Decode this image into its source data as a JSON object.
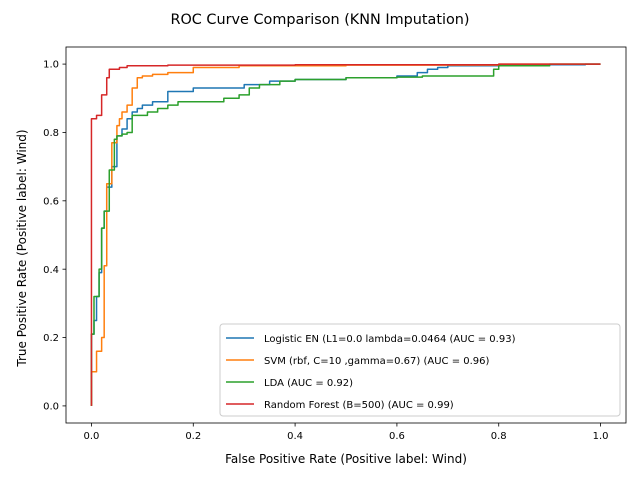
{
  "chart_data": {
    "type": "line",
    "title": "ROC Curve Comparison (KNN Imputation)",
    "xlabel": "False Positive Rate (Positive label: Wind)",
    "ylabel": "True Positive Rate (Positive label: Wind)",
    "xlim": [
      -0.05,
      1.05
    ],
    "ylim": [
      -0.05,
      1.05
    ],
    "xticks": [
      0.0,
      0.2,
      0.4,
      0.6,
      0.8,
      1.0
    ],
    "yticks": [
      0.0,
      0.2,
      0.4,
      0.6,
      0.8,
      1.0
    ],
    "xtick_labels": [
      "0.0",
      "0.2",
      "0.4",
      "0.6",
      "0.8",
      "1.0"
    ],
    "ytick_labels": [
      "0.0",
      "0.2",
      "0.4",
      "0.6",
      "0.8",
      "1.0"
    ],
    "grid": false,
    "legend_position": "lower right",
    "series": [
      {
        "name": "Logistic EN (L1=0.0 lambda=0.0464 (AUC = 0.93)",
        "color": "#1f77b4",
        "x": [
          0,
          0,
          0.005,
          0.005,
          0.01,
          0.01,
          0.015,
          0.015,
          0.02,
          0.02,
          0.025,
          0.025,
          0.03,
          0.03,
          0.04,
          0.04,
          0.05,
          0.05,
          0.06,
          0.06,
          0.07,
          0.07,
          0.08,
          0.08,
          0.09,
          0.09,
          0.1,
          0.1,
          0.12,
          0.12,
          0.15,
          0.15,
          0.2,
          0.2,
          0.3,
          0.3,
          0.35,
          0.35,
          0.4,
          0.4,
          0.5,
          0.5,
          0.6,
          0.6,
          0.64,
          0.64,
          0.66,
          0.66,
          0.68,
          0.68,
          0.7,
          0.7,
          0.8,
          0.8,
          0.97,
          0.97,
          1.0
        ],
        "y": [
          0,
          0.21,
          0.21,
          0.25,
          0.25,
          0.32,
          0.32,
          0.39,
          0.39,
          0.52,
          0.52,
          0.57,
          0.57,
          0.64,
          0.64,
          0.7,
          0.7,
          0.79,
          0.79,
          0.81,
          0.81,
          0.84,
          0.84,
          0.86,
          0.86,
          0.87,
          0.87,
          0.88,
          0.88,
          0.89,
          0.89,
          0.92,
          0.92,
          0.93,
          0.93,
          0.94,
          0.94,
          0.95,
          0.95,
          0.955,
          0.955,
          0.96,
          0.96,
          0.965,
          0.965,
          0.975,
          0.975,
          0.985,
          0.985,
          0.99,
          0.99,
          0.995,
          0.995,
          0.998,
          0.998,
          1.0,
          1.0
        ]
      },
      {
        "name": "SVM (rbf, C=10 ,gamma=0.67) (AUC = 0.96)",
        "color": "#ff7f0e",
        "x": [
          0,
          0,
          0.01,
          0.01,
          0.02,
          0.02,
          0.025,
          0.025,
          0.03,
          0.03,
          0.04,
          0.04,
          0.05,
          0.05,
          0.055,
          0.055,
          0.06,
          0.06,
          0.07,
          0.07,
          0.08,
          0.08,
          0.09,
          0.09,
          0.1,
          0.1,
          0.12,
          0.12,
          0.15,
          0.15,
          0.2,
          0.2,
          0.29,
          0.29,
          0.5,
          0.5,
          0.8,
          0.8,
          1.0
        ],
        "y": [
          0,
          0.1,
          0.1,
          0.16,
          0.16,
          0.2,
          0.2,
          0.41,
          0.41,
          0.65,
          0.65,
          0.77,
          0.77,
          0.82,
          0.82,
          0.84,
          0.84,
          0.86,
          0.86,
          0.88,
          0.88,
          0.93,
          0.93,
          0.96,
          0.96,
          0.965,
          0.965,
          0.97,
          0.97,
          0.975,
          0.975,
          0.99,
          0.99,
          0.995,
          0.995,
          0.997,
          0.997,
          1.0,
          1.0
        ]
      },
      {
        "name": "LDA (AUC = 0.92)",
        "color": "#2ca02c",
        "x": [
          0,
          0,
          0.005,
          0.005,
          0.015,
          0.015,
          0.02,
          0.02,
          0.025,
          0.025,
          0.035,
          0.035,
          0.045,
          0.045,
          0.05,
          0.05,
          0.06,
          0.06,
          0.07,
          0.07,
          0.08,
          0.08,
          0.09,
          0.09,
          0.11,
          0.11,
          0.13,
          0.13,
          0.15,
          0.15,
          0.17,
          0.17,
          0.2,
          0.2,
          0.26,
          0.26,
          0.29,
          0.29,
          0.31,
          0.31,
          0.33,
          0.33,
          0.37,
          0.37,
          0.4,
          0.4,
          0.5,
          0.5,
          0.6,
          0.6,
          0.65,
          0.65,
          0.79,
          0.79,
          0.8,
          0.8,
          0.9,
          0.9,
          1.0
        ],
        "y": [
          0,
          0.21,
          0.21,
          0.32,
          0.32,
          0.4,
          0.4,
          0.52,
          0.52,
          0.57,
          0.57,
          0.69,
          0.69,
          0.78,
          0.78,
          0.79,
          0.79,
          0.795,
          0.795,
          0.8,
          0.8,
          0.85,
          0.85,
          0.85,
          0.85,
          0.86,
          0.86,
          0.87,
          0.87,
          0.88,
          0.88,
          0.89,
          0.89,
          0.89,
          0.89,
          0.9,
          0.9,
          0.91,
          0.91,
          0.93,
          0.93,
          0.94,
          0.94,
          0.95,
          0.95,
          0.955,
          0.955,
          0.96,
          0.96,
          0.962,
          0.962,
          0.965,
          0.965,
          0.985,
          0.985,
          0.995,
          0.995,
          1.0,
          1.0
        ]
      },
      {
        "name": "Random Forest (B=500) (AUC = 0.99)",
        "color": "#d62728",
        "x": [
          0,
          0,
          0.01,
          0.01,
          0.02,
          0.02,
          0.03,
          0.03,
          0.035,
          0.035,
          0.055,
          0.055,
          0.07,
          0.07,
          0.15,
          0.15,
          0.4,
          0.4,
          0.8,
          0.8,
          1.0
        ],
        "y": [
          0,
          0.84,
          0.84,
          0.85,
          0.85,
          0.91,
          0.91,
          0.96,
          0.96,
          0.985,
          0.985,
          0.99,
          0.99,
          0.995,
          0.995,
          0.997,
          0.997,
          0.998,
          0.998,
          1.0,
          1.0
        ]
      }
    ]
  }
}
